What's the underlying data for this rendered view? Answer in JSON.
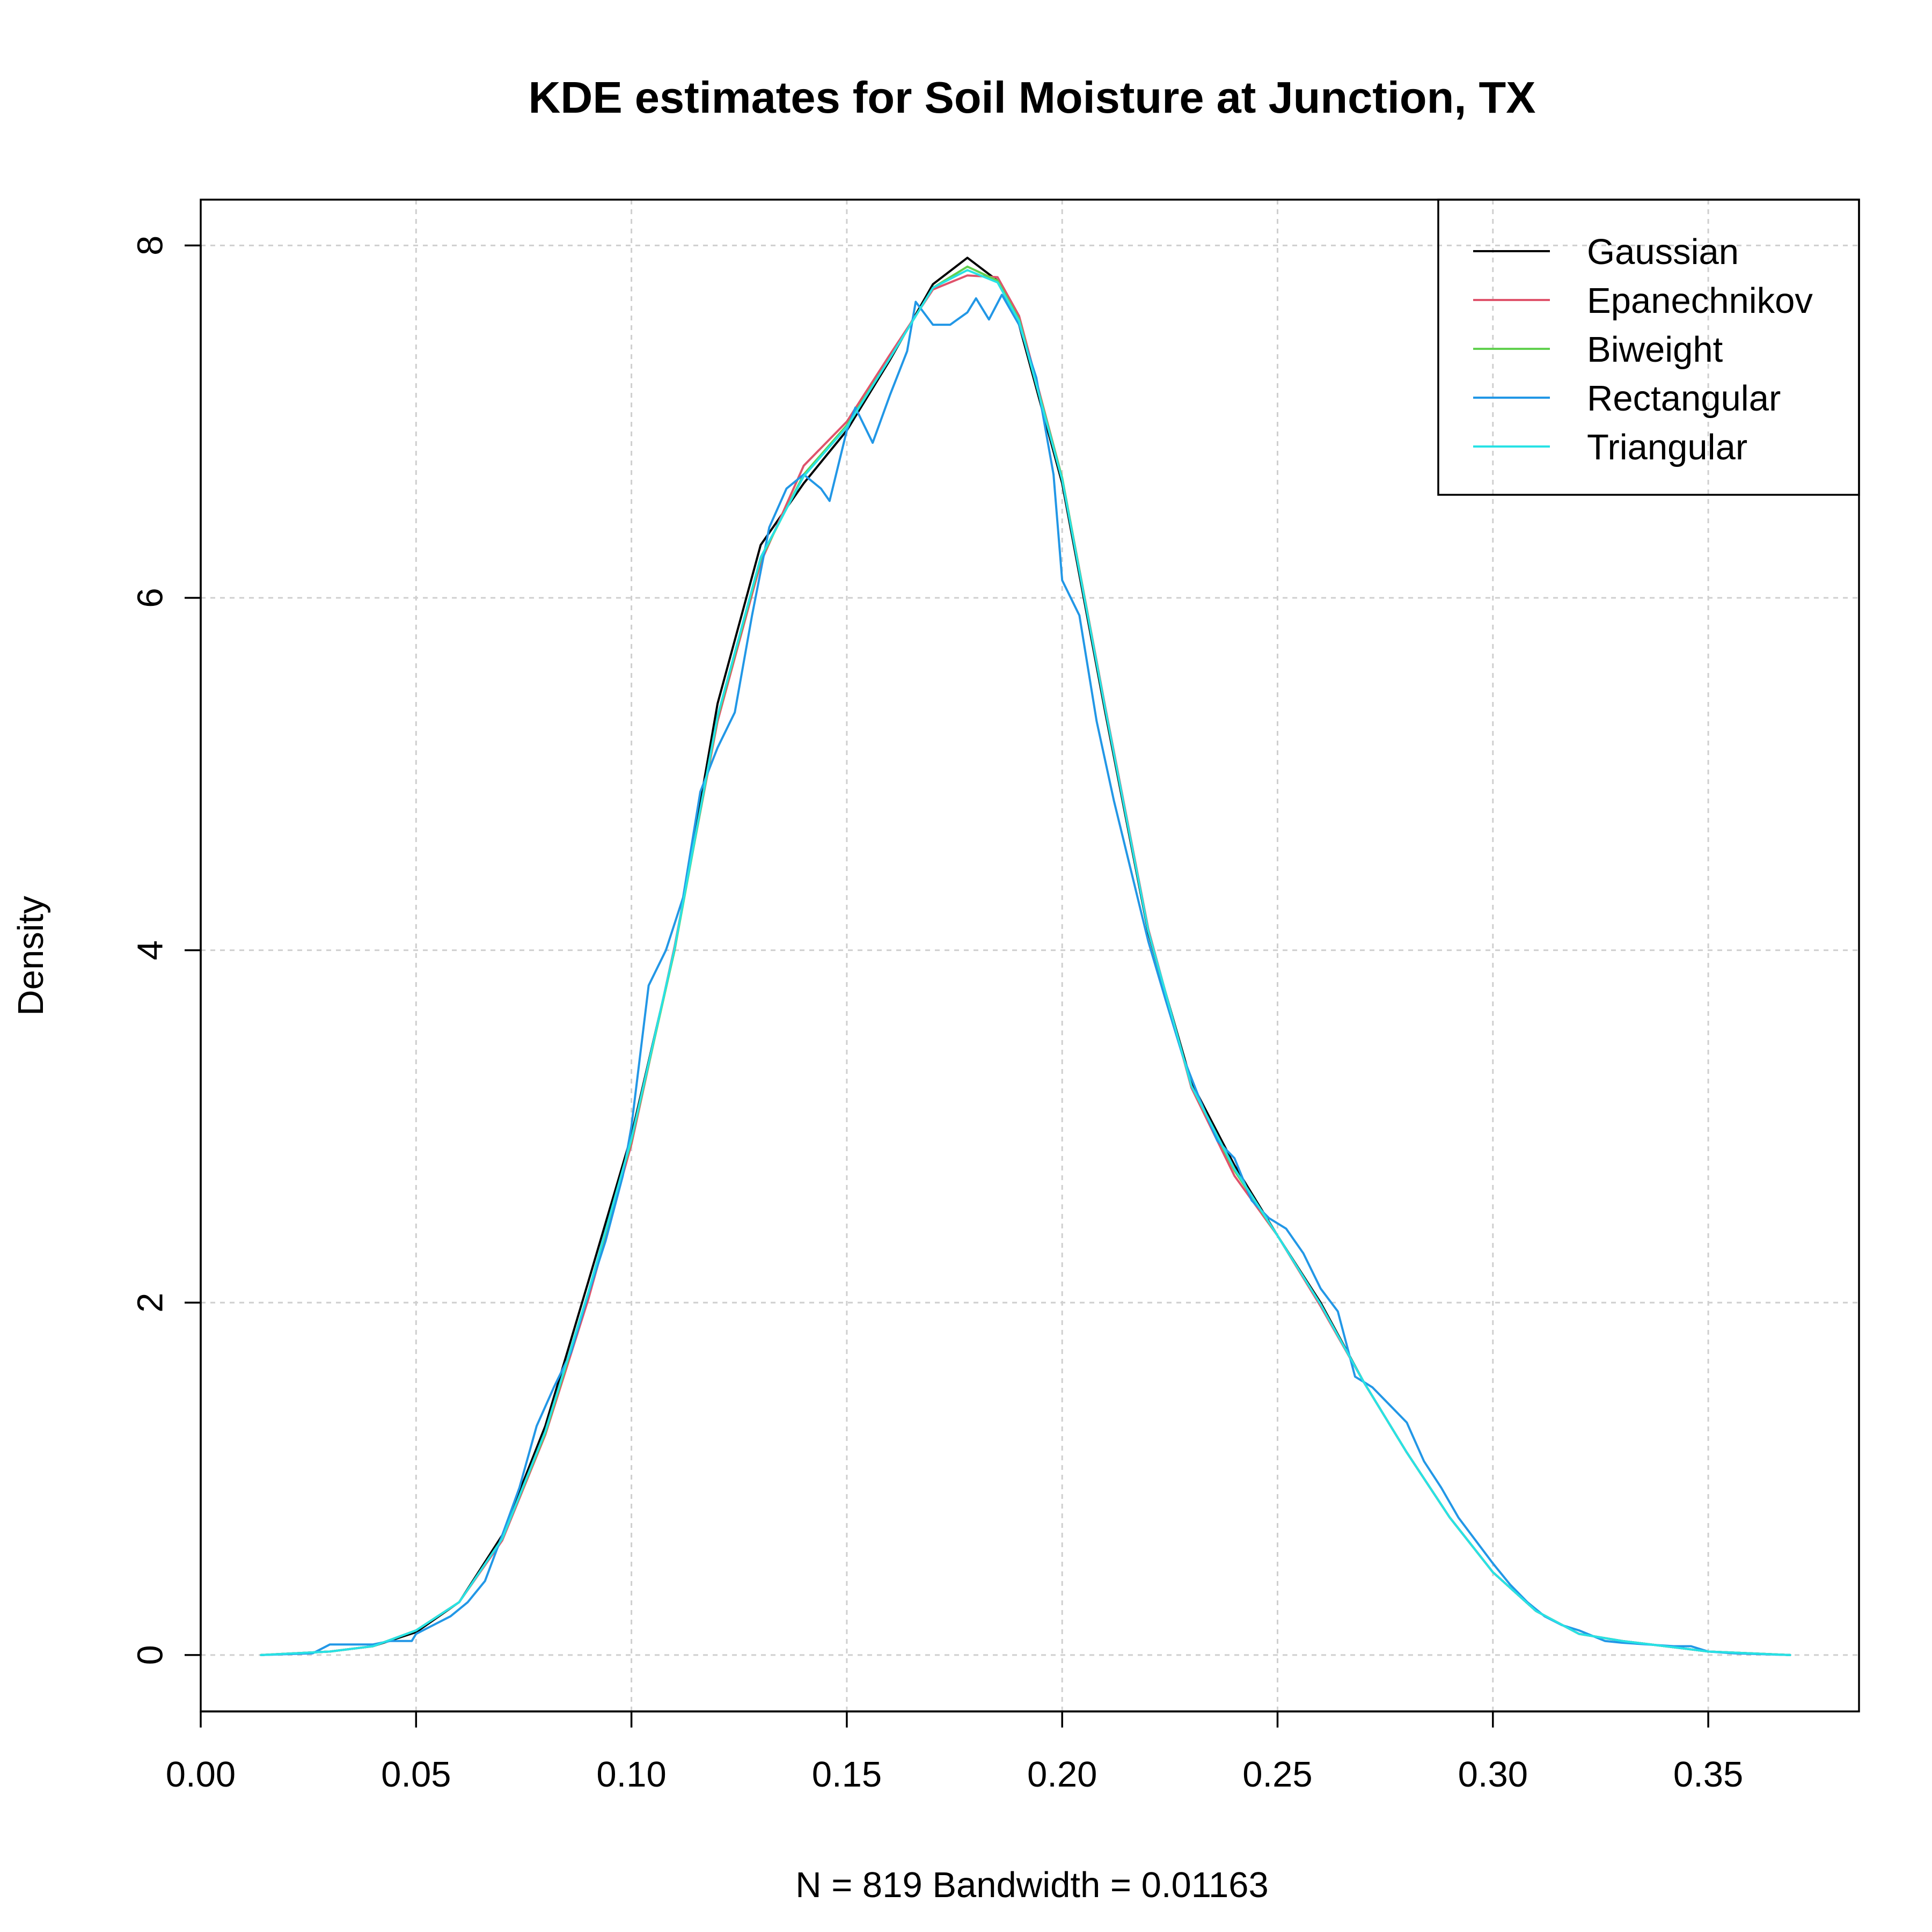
{
  "chart_data": {
    "type": "line",
    "title": "KDE estimates for Soil Moisture at Junction, TX",
    "xlabel": "N = 819   Bandwidth = 0.01163",
    "ylabel": "Density",
    "xlim": [
      0.0,
      0.385
    ],
    "ylim": [
      -0.32,
      8.26
    ],
    "x_ticks": [
      0.0,
      0.05,
      0.1,
      0.15,
      0.2,
      0.25,
      0.3,
      0.35
    ],
    "x_tick_labels": [
      "0.00",
      "0.05",
      "0.10",
      "0.15",
      "0.20",
      "0.25",
      "0.30",
      "0.35"
    ],
    "y_ticks": [
      0,
      2,
      4,
      6,
      8
    ],
    "y_tick_labels": [
      "0",
      "2",
      "4",
      "6",
      "8"
    ],
    "grid": true,
    "legend_position": "top-right",
    "series": [
      {
        "name": "Gaussian",
        "color": "#000000",
        "points": [
          [
            0.014,
            0.0
          ],
          [
            0.03,
            0.02
          ],
          [
            0.04,
            0.05
          ],
          [
            0.05,
            0.13
          ],
          [
            0.06,
            0.3
          ],
          [
            0.07,
            0.68
          ],
          [
            0.08,
            1.3
          ],
          [
            0.09,
            2.12
          ],
          [
            0.1,
            2.95
          ],
          [
            0.11,
            4.0
          ],
          [
            0.12,
            5.4
          ],
          [
            0.13,
            6.3
          ],
          [
            0.14,
            6.65
          ],
          [
            0.15,
            6.95
          ],
          [
            0.16,
            7.35
          ],
          [
            0.17,
            7.78
          ],
          [
            0.178,
            7.93
          ],
          [
            0.185,
            7.8
          ],
          [
            0.19,
            7.55
          ],
          [
            0.2,
            6.65
          ],
          [
            0.21,
            5.35
          ],
          [
            0.22,
            4.1
          ],
          [
            0.23,
            3.25
          ],
          [
            0.24,
            2.78
          ],
          [
            0.25,
            2.38
          ],
          [
            0.26,
            2.0
          ],
          [
            0.27,
            1.55
          ],
          [
            0.28,
            1.15
          ],
          [
            0.29,
            0.78
          ],
          [
            0.3,
            0.47
          ],
          [
            0.31,
            0.25
          ],
          [
            0.32,
            0.12
          ],
          [
            0.33,
            0.08
          ],
          [
            0.34,
            0.05
          ],
          [
            0.35,
            0.02
          ],
          [
            0.369,
            0.0
          ]
        ]
      },
      {
        "name": "Epanechnikov",
        "color": "#DF536B",
        "points": [
          [
            0.014,
            0.0
          ],
          [
            0.03,
            0.02
          ],
          [
            0.04,
            0.05
          ],
          [
            0.05,
            0.14
          ],
          [
            0.06,
            0.3
          ],
          [
            0.07,
            0.65
          ],
          [
            0.08,
            1.25
          ],
          [
            0.09,
            2.02
          ],
          [
            0.1,
            2.9
          ],
          [
            0.11,
            4.02
          ],
          [
            0.12,
            5.3
          ],
          [
            0.13,
            6.2
          ],
          [
            0.14,
            6.75
          ],
          [
            0.15,
            7.0
          ],
          [
            0.16,
            7.38
          ],
          [
            0.17,
            7.75
          ],
          [
            0.178,
            7.83
          ],
          [
            0.185,
            7.82
          ],
          [
            0.19,
            7.6
          ],
          [
            0.2,
            6.68
          ],
          [
            0.21,
            5.38
          ],
          [
            0.22,
            4.12
          ],
          [
            0.23,
            3.22
          ],
          [
            0.24,
            2.72
          ],
          [
            0.25,
            2.38
          ],
          [
            0.26,
            1.98
          ],
          [
            0.27,
            1.55
          ],
          [
            0.28,
            1.15
          ],
          [
            0.29,
            0.78
          ],
          [
            0.3,
            0.47
          ],
          [
            0.31,
            0.25
          ],
          [
            0.32,
            0.12
          ],
          [
            0.33,
            0.08
          ],
          [
            0.34,
            0.05
          ],
          [
            0.35,
            0.02
          ],
          [
            0.369,
            0.0
          ]
        ]
      },
      {
        "name": "Biweight",
        "color": "#61D04F",
        "points": [
          [
            0.014,
            0.0
          ],
          [
            0.03,
            0.02
          ],
          [
            0.04,
            0.05
          ],
          [
            0.05,
            0.14
          ],
          [
            0.06,
            0.3
          ],
          [
            0.07,
            0.66
          ],
          [
            0.08,
            1.26
          ],
          [
            0.09,
            2.05
          ],
          [
            0.1,
            2.92
          ],
          [
            0.11,
            4.0
          ],
          [
            0.12,
            5.32
          ],
          [
            0.13,
            6.22
          ],
          [
            0.14,
            6.7
          ],
          [
            0.15,
            6.98
          ],
          [
            0.16,
            7.36
          ],
          [
            0.17,
            7.76
          ],
          [
            0.178,
            7.88
          ],
          [
            0.185,
            7.8
          ],
          [
            0.19,
            7.58
          ],
          [
            0.2,
            6.68
          ],
          [
            0.21,
            5.37
          ],
          [
            0.22,
            4.11
          ],
          [
            0.23,
            3.23
          ],
          [
            0.24,
            2.75
          ],
          [
            0.25,
            2.38
          ],
          [
            0.26,
            1.99
          ],
          [
            0.27,
            1.55
          ],
          [
            0.28,
            1.15
          ],
          [
            0.29,
            0.78
          ],
          [
            0.3,
            0.47
          ],
          [
            0.31,
            0.25
          ],
          [
            0.32,
            0.12
          ],
          [
            0.33,
            0.08
          ],
          [
            0.34,
            0.05
          ],
          [
            0.35,
            0.02
          ],
          [
            0.369,
            0.0
          ]
        ]
      },
      {
        "name": "Rectangular",
        "color": "#2297E6",
        "points": [
          [
            0.014,
            0.0
          ],
          [
            0.026,
            0.01
          ],
          [
            0.03,
            0.06
          ],
          [
            0.036,
            0.06
          ],
          [
            0.04,
            0.06
          ],
          [
            0.044,
            0.08
          ],
          [
            0.049,
            0.08
          ],
          [
            0.05,
            0.12
          ],
          [
            0.054,
            0.17
          ],
          [
            0.058,
            0.22
          ],
          [
            0.062,
            0.3
          ],
          [
            0.066,
            0.42
          ],
          [
            0.07,
            0.68
          ],
          [
            0.074,
            0.95
          ],
          [
            0.078,
            1.3
          ],
          [
            0.082,
            1.52
          ],
          [
            0.086,
            1.72
          ],
          [
            0.09,
            2.05
          ],
          [
            0.094,
            2.35
          ],
          [
            0.098,
            2.72
          ],
          [
            0.1,
            3.0
          ],
          [
            0.104,
            3.8
          ],
          [
            0.108,
            4.0
          ],
          [
            0.112,
            4.3
          ],
          [
            0.116,
            4.9
          ],
          [
            0.12,
            5.15
          ],
          [
            0.124,
            5.35
          ],
          [
            0.128,
            5.9
          ],
          [
            0.132,
            6.4
          ],
          [
            0.136,
            6.62
          ],
          [
            0.14,
            6.7
          ],
          [
            0.144,
            6.62
          ],
          [
            0.146,
            6.55
          ],
          [
            0.15,
            6.95
          ],
          [
            0.152,
            7.08
          ],
          [
            0.156,
            6.88
          ],
          [
            0.16,
            7.15
          ],
          [
            0.164,
            7.4
          ],
          [
            0.166,
            7.68
          ],
          [
            0.17,
            7.55
          ],
          [
            0.174,
            7.55
          ],
          [
            0.178,
            7.62
          ],
          [
            0.18,
            7.7
          ],
          [
            0.183,
            7.58
          ],
          [
            0.186,
            7.72
          ],
          [
            0.19,
            7.55
          ],
          [
            0.194,
            7.25
          ],
          [
            0.198,
            6.7
          ],
          [
            0.2,
            6.1
          ],
          [
            0.204,
            5.9
          ],
          [
            0.208,
            5.3
          ],
          [
            0.212,
            4.85
          ],
          [
            0.216,
            4.45
          ],
          [
            0.22,
            4.05
          ],
          [
            0.224,
            3.72
          ],
          [
            0.228,
            3.4
          ],
          [
            0.232,
            3.15
          ],
          [
            0.236,
            2.92
          ],
          [
            0.24,
            2.82
          ],
          [
            0.244,
            2.58
          ],
          [
            0.248,
            2.48
          ],
          [
            0.252,
            2.42
          ],
          [
            0.256,
            2.28
          ],
          [
            0.26,
            2.08
          ],
          [
            0.264,
            1.95
          ],
          [
            0.268,
            1.58
          ],
          [
            0.272,
            1.52
          ],
          [
            0.276,
            1.42
          ],
          [
            0.28,
            1.32
          ],
          [
            0.284,
            1.1
          ],
          [
            0.288,
            0.95
          ],
          [
            0.292,
            0.78
          ],
          [
            0.296,
            0.65
          ],
          [
            0.3,
            0.52
          ],
          [
            0.304,
            0.4
          ],
          [
            0.308,
            0.3
          ],
          [
            0.312,
            0.22
          ],
          [
            0.316,
            0.17
          ],
          [
            0.32,
            0.14
          ],
          [
            0.326,
            0.08
          ],
          [
            0.33,
            0.07
          ],
          [
            0.336,
            0.06
          ],
          [
            0.342,
            0.05
          ],
          [
            0.346,
            0.05
          ],
          [
            0.35,
            0.02
          ],
          [
            0.356,
            0.01
          ],
          [
            0.369,
            0.0
          ]
        ]
      },
      {
        "name": "Triangular",
        "color": "#28E2E5",
        "points": [
          [
            0.014,
            0.0
          ],
          [
            0.03,
            0.02
          ],
          [
            0.04,
            0.05
          ],
          [
            0.05,
            0.14
          ],
          [
            0.06,
            0.3
          ],
          [
            0.07,
            0.66
          ],
          [
            0.08,
            1.27
          ],
          [
            0.09,
            2.06
          ],
          [
            0.1,
            2.93
          ],
          [
            0.11,
            4.01
          ],
          [
            0.12,
            5.33
          ],
          [
            0.13,
            6.23
          ],
          [
            0.14,
            6.69
          ],
          [
            0.15,
            6.97
          ],
          [
            0.16,
            7.36
          ],
          [
            0.17,
            7.76
          ],
          [
            0.178,
            7.86
          ],
          [
            0.185,
            7.79
          ],
          [
            0.19,
            7.57
          ],
          [
            0.2,
            6.67
          ],
          [
            0.21,
            5.37
          ],
          [
            0.22,
            4.11
          ],
          [
            0.23,
            3.23
          ],
          [
            0.24,
            2.76
          ],
          [
            0.25,
            2.38
          ],
          [
            0.26,
            1.99
          ],
          [
            0.27,
            1.55
          ],
          [
            0.28,
            1.15
          ],
          [
            0.29,
            0.78
          ],
          [
            0.3,
            0.47
          ],
          [
            0.31,
            0.25
          ],
          [
            0.32,
            0.12
          ],
          [
            0.33,
            0.08
          ],
          [
            0.34,
            0.05
          ],
          [
            0.35,
            0.02
          ],
          [
            0.369,
            0.0
          ]
        ]
      }
    ]
  }
}
